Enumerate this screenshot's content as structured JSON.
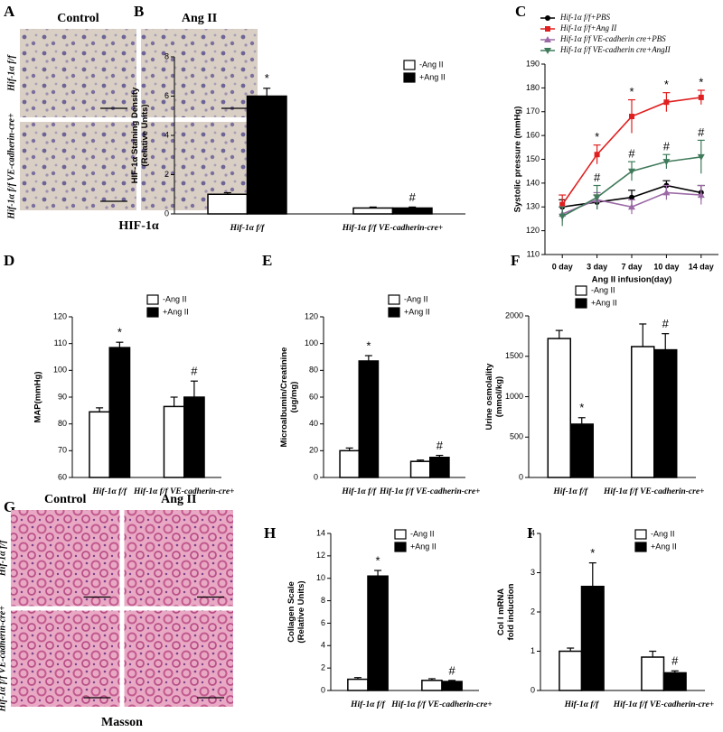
{
  "image_panels": [
    {
      "panel": "A",
      "columns": [
        "Control",
        "Ang II"
      ],
      "rows": [
        "Hif-1α f/f",
        "Hif-1α f/f VE-cadherin-cre+"
      ],
      "caption": "HIF-1α"
    },
    {
      "panel": "G",
      "columns": [
        "Control",
        "Ang II"
      ],
      "rows": [
        "Hif-1α f/f",
        "Hif-1α f/f VE-cadherin-cre+"
      ],
      "caption": "Masson"
    }
  ],
  "chart_data": [
    {
      "type": "bar",
      "panel": "B",
      "ylabel": [
        "HIF-1α Staining Density",
        "(Relative Units)"
      ],
      "categories": [
        "Hif-1α f/f",
        "Hif-1α f/f VE-cadherin-cre+"
      ],
      "series": [
        {
          "name": "-Ang II",
          "color": "#ffffff",
          "values": [
            1.0,
            0.3
          ],
          "errors": [
            0.08,
            0.05
          ]
        },
        {
          "name": "+Ang II",
          "color": "#000000",
          "values": [
            6.0,
            0.3
          ],
          "errors": [
            0.4,
            0.05
          ],
          "annotations": [
            "*",
            "#"
          ]
        }
      ],
      "ylim": [
        0,
        8
      ],
      "yticks": [
        0,
        2,
        4,
        6,
        8
      ]
    },
    {
      "type": "line",
      "panel": "C",
      "ylabel": [
        "Systolic pressure (mmHg)"
      ],
      "xlabel": "Ang II infusion(day)",
      "categories": [
        "0 day",
        "3 day",
        "7 day",
        "10 day",
        "14 day"
      ],
      "series": [
        {
          "name": "Hif-1α f/f+PBS",
          "color": "#000000",
          "marker": "circle",
          "values": [
            130,
            132,
            134,
            139,
            136
          ],
          "errors": [
            3,
            3,
            3,
            2,
            3
          ]
        },
        {
          "name": "Hif-1α f/f+Ang II",
          "color": "#e02020",
          "marker": "square",
          "values": [
            131,
            152,
            168,
            174,
            176
          ],
          "errors": [
            4,
            4,
            7,
            4,
            3
          ],
          "annotations": [
            null,
            "*",
            "*",
            "*",
            "*"
          ]
        },
        {
          "name": "Hif-1α f/f VE-cadherin cre+PBS",
          "color": "#9b6aa6",
          "marker": "triangle",
          "values": [
            127,
            133,
            130,
            136,
            135
          ],
          "errors": [
            3,
            3,
            3,
            3,
            4
          ]
        },
        {
          "name": "Hif-1α f/f VE-cadherin cre+AngII",
          "color": "#3f7a5a",
          "marker": "triangle-down",
          "values": [
            126,
            134,
            145,
            149,
            151
          ],
          "errors": [
            4,
            5,
            4,
            3,
            7
          ],
          "annotations": [
            null,
            "#",
            "#",
            "#",
            "#"
          ]
        }
      ],
      "ylim": [
        110,
        190
      ],
      "yticks": [
        110,
        120,
        130,
        140,
        150,
        160,
        170,
        180,
        190
      ]
    },
    {
      "type": "bar",
      "panel": "D",
      "ylabel": [
        "MAP(mmHg)"
      ],
      "categories": [
        "Hif-1α f/f",
        "Hif-1α f/f VE-cadherin-cre+"
      ],
      "series": [
        {
          "name": "-Ang II",
          "color": "#ffffff",
          "values": [
            84.5,
            86.5
          ],
          "errors": [
            1.5,
            3.5
          ]
        },
        {
          "name": "+Ang II",
          "color": "#000000",
          "values": [
            108.5,
            90
          ],
          "errors": [
            2,
            6
          ],
          "annotations": [
            "*",
            "#"
          ]
        }
      ],
      "ylim": [
        60,
        120
      ],
      "yticks": [
        60,
        70,
        80,
        90,
        100,
        110,
        120
      ]
    },
    {
      "type": "bar",
      "panel": "E",
      "ylabel": [
        "Microalbumin/Creatinine",
        "(ug/mg)"
      ],
      "categories": [
        "Hif-1α f/f",
        "Hif-1α f/f VE-cadherin-cre+"
      ],
      "series": [
        {
          "name": "-Ang II",
          "color": "#ffffff",
          "values": [
            20,
            12
          ],
          "errors": [
            2,
            1
          ]
        },
        {
          "name": "+Ang II",
          "color": "#000000",
          "values": [
            87,
            15
          ],
          "errors": [
            4,
            1.5
          ],
          "annotations": [
            "*",
            "#"
          ]
        }
      ],
      "ylim": [
        0,
        120
      ],
      "yticks": [
        0,
        20,
        40,
        60,
        80,
        100,
        120
      ]
    },
    {
      "type": "bar",
      "panel": "F",
      "ylabel": [
        "Urine osmolality",
        "(mmol/kg)"
      ],
      "categories": [
        "Hif-1α f/f",
        "Hif-1α f/f VE-cadherin-cre+"
      ],
      "series": [
        {
          "name": "-Ang II",
          "color": "#ffffff",
          "values": [
            1720,
            1620
          ],
          "errors": [
            100,
            280
          ]
        },
        {
          "name": "+Ang II",
          "color": "#000000",
          "values": [
            660,
            1580
          ],
          "errors": [
            80,
            200
          ],
          "annotations": [
            "*",
            "#"
          ]
        }
      ],
      "ylim": [
        0,
        2000
      ],
      "yticks": [
        0,
        500,
        1000,
        1500,
        2000
      ]
    },
    {
      "type": "bar",
      "panel": "H",
      "ylabel": [
        "Collagen Scale",
        "(Relative Units)"
      ],
      "categories": [
        "Hif-1α f/f",
        "Hif-1α f/f VE-cadherin-cre+"
      ],
      "series": [
        {
          "name": "-Ang II",
          "color": "#ffffff",
          "values": [
            1.0,
            0.9
          ],
          "errors": [
            0.15,
            0.15
          ]
        },
        {
          "name": "+Ang II",
          "color": "#000000",
          "values": [
            10.2,
            0.8
          ],
          "errors": [
            0.5,
            0.1
          ],
          "annotations": [
            "*",
            "#"
          ]
        }
      ],
      "ylim": [
        0,
        14
      ],
      "yticks": [
        0,
        2,
        4,
        6,
        8,
        10,
        12,
        14
      ]
    },
    {
      "type": "bar",
      "panel": "I",
      "ylabel": [
        "Col I mRNA",
        "fold induction"
      ],
      "categories": [
        "Hif-1α f/f",
        "Hif-1α f/f VE-cadherin-cre+"
      ],
      "series": [
        {
          "name": "-Ang II",
          "color": "#ffffff",
          "values": [
            1.0,
            0.85
          ],
          "errors": [
            0.08,
            0.15
          ]
        },
        {
          "name": "+Ang II",
          "color": "#000000",
          "values": [
            2.65,
            0.45
          ],
          "errors": [
            0.6,
            0.05
          ],
          "annotations": [
            "*",
            "#"
          ]
        }
      ],
      "ylim": [
        0,
        4
      ],
      "yticks": [
        0,
        1,
        2,
        3,
        4
      ]
    }
  ]
}
